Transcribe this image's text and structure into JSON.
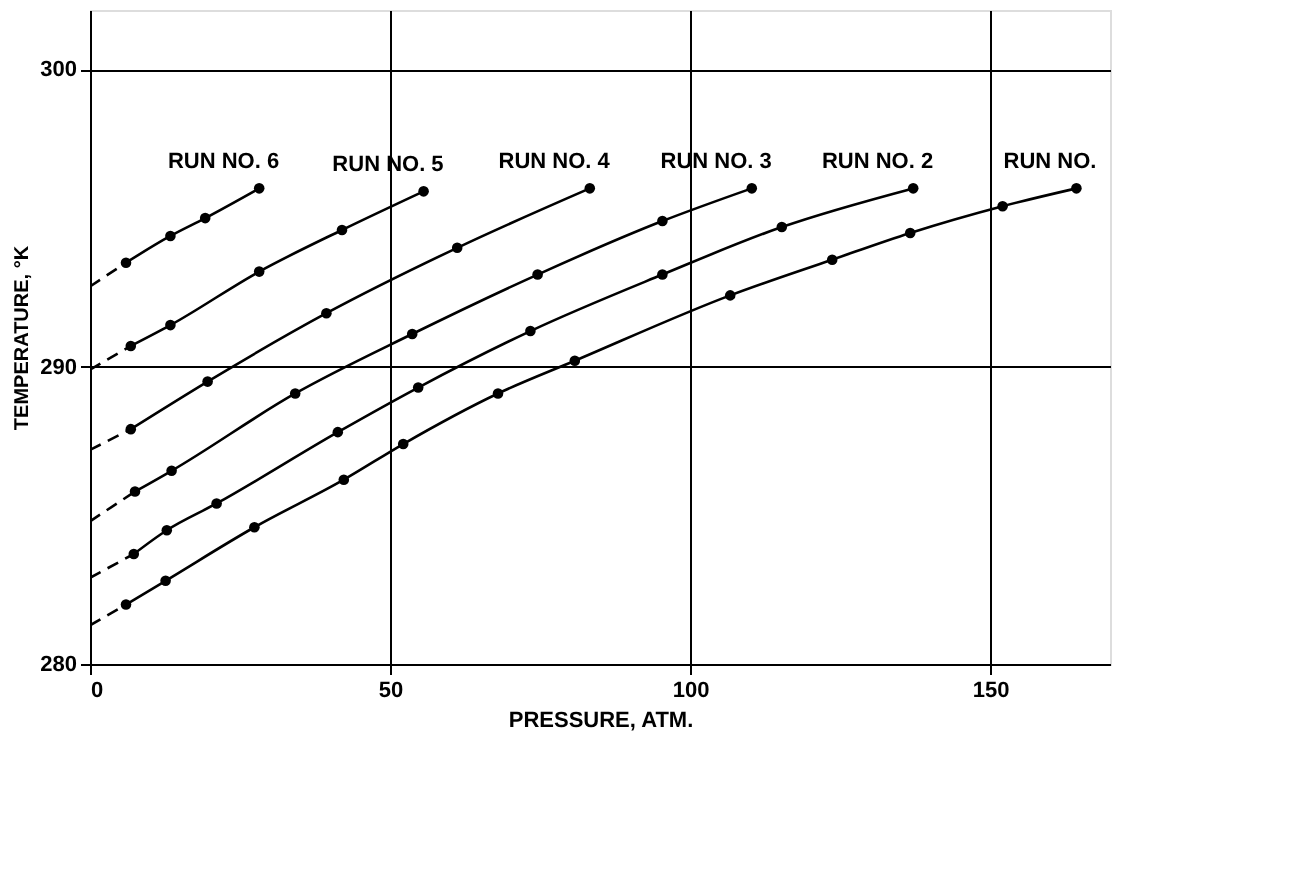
{
  "chart_data": {
    "type": "line",
    "xlabel": "PRESSURE, ATM.",
    "ylabel": "TEMPERATURE, °K",
    "xlim": [
      0,
      170
    ],
    "ylim": [
      280,
      302
    ],
    "xticks": [
      0,
      50,
      100,
      150
    ],
    "yticks": [
      280,
      290,
      300
    ],
    "grid": true,
    "marker": "circle",
    "line_style": "solid",
    "series": [
      {
        "name": "RUN NO. 6",
        "color": "#000000",
        "x": [
          6.0,
          13.4,
          19.2,
          28.2
        ],
        "values": [
          293.5,
          294.4,
          295.0,
          296.0
        ]
      },
      {
        "name": "RUN NO. 5",
        "color": "#000000",
        "x": [
          6.8,
          13.4,
          28.2,
          42.0,
          55.6
        ],
        "values": [
          290.7,
          291.4,
          293.2,
          294.6,
          295.9
        ]
      },
      {
        "name": "RUN NO. 4",
        "color": "#000000",
        "x": [
          6.8,
          19.6,
          39.4,
          61.2,
          83.3
        ],
        "values": [
          287.9,
          289.5,
          291.8,
          294.0,
          296.0
        ]
      },
      {
        "name": "RUN NO. 3",
        "color": "#000000",
        "x": [
          7.5,
          13.6,
          34.2,
          53.7,
          74.6,
          95.4,
          110.3
        ],
        "values": [
          285.8,
          286.5,
          289.1,
          291.1,
          293.1,
          294.9,
          296.0
        ]
      },
      {
        "name": "RUN NO. 2",
        "color": "#000000",
        "x": [
          7.3,
          12.8,
          21.1,
          41.3,
          54.7,
          73.4,
          95.4,
          115.3,
          137.2
        ],
        "values": [
          283.7,
          284.5,
          285.4,
          287.8,
          289.3,
          291.2,
          293.1,
          294.7,
          296.0
        ]
      },
      {
        "name": "RUN NO.",
        "color": "#000000",
        "x": [
          6.0,
          12.6,
          27.4,
          42.3,
          52.2,
          68.0,
          80.8,
          106.7,
          123.7,
          136.7,
          152.1,
          164.4
        ],
        "values": [
          282.0,
          282.8,
          284.6,
          286.2,
          287.4,
          289.1,
          290.2,
          292.4,
          293.6,
          294.5,
          295.4,
          296.0
        ]
      },
      {
        "type": "line",
        "line_style": "dashed",
        "marker": "none",
        "color": "#000000",
        "x": [
          0,
          6.0
        ],
        "values": [
          292.7,
          293.5
        ]
      },
      {
        "type": "line",
        "line_style": "dashed",
        "marker": "none",
        "color": "#000000",
        "x": [
          0,
          6.8
        ],
        "values": [
          289.9,
          290.7
        ]
      },
      {
        "type": "line",
        "line_style": "dashed",
        "marker": "none",
        "color": "#000000",
        "x": [
          0,
          6.8
        ],
        "values": [
          287.2,
          287.9
        ]
      },
      {
        "type": "line",
        "line_style": "dashed",
        "marker": "none",
        "color": "#000000",
        "x": [
          0,
          7.5
        ],
        "values": [
          284.8,
          285.8
        ]
      },
      {
        "type": "line",
        "line_style": "dashed",
        "marker": "none",
        "color": "#000000",
        "x": [
          0,
          7.3
        ],
        "values": [
          282.9,
          283.7
        ]
      },
      {
        "type": "line",
        "line_style": "dashed",
        "marker": "none",
        "color": "#000000",
        "x": [
          0,
          6.0
        ],
        "values": [
          281.3,
          282.0
        ]
      }
    ]
  }
}
